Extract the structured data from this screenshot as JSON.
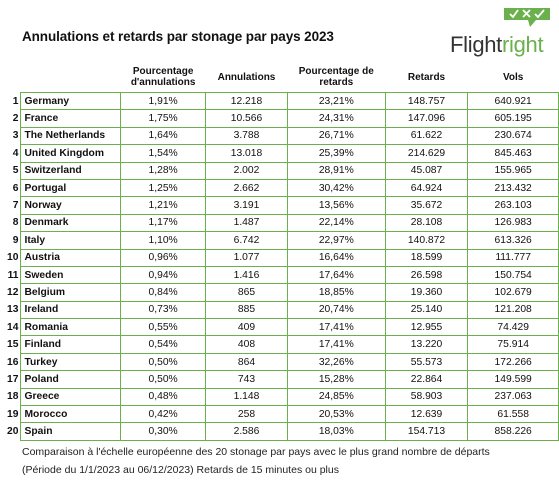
{
  "title": "Annulations et retards par stonage par pays 2023",
  "logo": {
    "text_main": "Flight",
    "text_accent": "right",
    "badge_icons": [
      "check-icon",
      "x-icon",
      "check-icon"
    ],
    "accent_color": "#6ab04c"
  },
  "table": {
    "headers": {
      "rank": "",
      "country": "",
      "pct_cancel": "Pourcentage d'annulations",
      "cancellations": "Annulations",
      "pct_delay": "Pourcentage de retards",
      "delays": "Retards",
      "flights": "Vols"
    },
    "rows": [
      {
        "rank": "1",
        "country": "Germany",
        "pct_cancel": "1,91%",
        "cancellations": "12.218",
        "pct_delay": "23,21%",
        "delays": "148.757",
        "flights": "640.921"
      },
      {
        "rank": "2",
        "country": "France",
        "pct_cancel": "1,75%",
        "cancellations": "10.566",
        "pct_delay": "24,31%",
        "delays": "147.096",
        "flights": "605.195"
      },
      {
        "rank": "3",
        "country": "The Netherlands",
        "pct_cancel": "1,64%",
        "cancellations": "3.788",
        "pct_delay": "26,71%",
        "delays": "61.622",
        "flights": "230.674"
      },
      {
        "rank": "4",
        "country": "United Kingdom",
        "pct_cancel": "1,54%",
        "cancellations": "13.018",
        "pct_delay": "25,39%",
        "delays": "214.629",
        "flights": "845.463"
      },
      {
        "rank": "5",
        "country": "Switzerland",
        "pct_cancel": "1,28%",
        "cancellations": "2.002",
        "pct_delay": "28,91%",
        "delays": "45.087",
        "flights": "155.965"
      },
      {
        "rank": "6",
        "country": "Portugal",
        "pct_cancel": "1,25%",
        "cancellations": "2.662",
        "pct_delay": "30,42%",
        "delays": "64.924",
        "flights": "213.432"
      },
      {
        "rank": "7",
        "country": "Norway",
        "pct_cancel": "1,21%",
        "cancellations": "3.191",
        "pct_delay": "13,56%",
        "delays": "35.672",
        "flights": "263.103"
      },
      {
        "rank": "8",
        "country": "Denmark",
        "pct_cancel": "1,17%",
        "cancellations": "1.487",
        "pct_delay": "22,14%",
        "delays": "28.108",
        "flights": "126.983"
      },
      {
        "rank": "9",
        "country": "Italy",
        "pct_cancel": "1,10%",
        "cancellations": "6.742",
        "pct_delay": "22,97%",
        "delays": "140.872",
        "flights": "613.326"
      },
      {
        "rank": "10",
        "country": "Austria",
        "pct_cancel": "0,96%",
        "cancellations": "1.077",
        "pct_delay": "16,64%",
        "delays": "18.599",
        "flights": "111.777"
      },
      {
        "rank": "11",
        "country": "Sweden",
        "pct_cancel": "0,94%",
        "cancellations": "1.416",
        "pct_delay": "17,64%",
        "delays": "26.598",
        "flights": "150.754"
      },
      {
        "rank": "12",
        "country": "Belgium",
        "pct_cancel": "0,84%",
        "cancellations": "865",
        "pct_delay": "18,85%",
        "delays": "19.360",
        "flights": "102.679"
      },
      {
        "rank": "13",
        "country": "Ireland",
        "pct_cancel": "0,73%",
        "cancellations": "885",
        "pct_delay": "20,74%",
        "delays": "25.140",
        "flights": "121.208"
      },
      {
        "rank": "14",
        "country": "Romania",
        "pct_cancel": "0,55%",
        "cancellations": "409",
        "pct_delay": "17,41%",
        "delays": "12.955",
        "flights": "74.429"
      },
      {
        "rank": "15",
        "country": "Finland",
        "pct_cancel": "0,54%",
        "cancellations": "408",
        "pct_delay": "17,41%",
        "delays": "13.220",
        "flights": "75.914"
      },
      {
        "rank": "16",
        "country": "Turkey",
        "pct_cancel": "0,50%",
        "cancellations": "864",
        "pct_delay": "32,26%",
        "delays": "55.573",
        "flights": "172.266"
      },
      {
        "rank": "17",
        "country": "Poland",
        "pct_cancel": "0,50%",
        "cancellations": "743",
        "pct_delay": "15,28%",
        "delays": "22.864",
        "flights": "149.599"
      },
      {
        "rank": "18",
        "country": "Greece",
        "pct_cancel": "0,48%",
        "cancellations": "1.148",
        "pct_delay": "24,85%",
        "delays": "58.903",
        "flights": "237.063"
      },
      {
        "rank": "19",
        "country": "Morocco",
        "pct_cancel": "0,42%",
        "cancellations": "258",
        "pct_delay": "20,53%",
        "delays": "12.639",
        "flights": "61.558"
      },
      {
        "rank": "20",
        "country": "Spain",
        "pct_cancel": "0,30%",
        "cancellations": "2.586",
        "pct_delay": "18,03%",
        "delays": "154.713",
        "flights": "858.226"
      }
    ]
  },
  "footnote": {
    "line1": "Comparaison à l'échelle européenne des 20 stonage par pays avec le plus grand nombre de départs",
    "line2": "(Période du 1/1/2023 au 06/12/2023) Retards de 15 minutes ou plus"
  }
}
